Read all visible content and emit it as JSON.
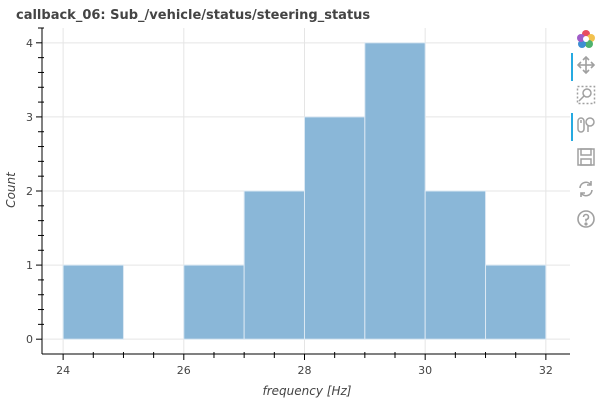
{
  "chart_data": {
    "type": "bar",
    "title": "callback_06: Sub_/vehicle/status/steering_status",
    "xlabel": "frequency [Hz]",
    "ylabel": "Count",
    "bins": [
      {
        "left": 24,
        "right": 25,
        "count": 1
      },
      {
        "left": 25,
        "right": 26,
        "count": 0
      },
      {
        "left": 26,
        "right": 27,
        "count": 1
      },
      {
        "left": 27,
        "right": 28,
        "count": 2
      },
      {
        "left": 28,
        "right": 29,
        "count": 3
      },
      {
        "left": 29,
        "right": 30,
        "count": 4
      },
      {
        "left": 30,
        "right": 31,
        "count": 2
      },
      {
        "left": 31,
        "right": 32,
        "count": 1
      }
    ],
    "xlim": [
      23.65,
      32.4
    ],
    "ylim": [
      -0.2,
      4.2
    ],
    "xticks": [
      24,
      26,
      28,
      30,
      32
    ],
    "yticks": [
      0,
      1,
      2,
      3,
      4
    ],
    "grid": true,
    "bar_color": "#8ab7d8",
    "bar_edge_color": "#dbe8f3"
  },
  "toolbar": {
    "tools": [
      {
        "icon": "bokeh-logo-icon",
        "active": false
      },
      {
        "icon": "pan-icon",
        "active": true
      },
      {
        "icon": "box-zoom-icon",
        "active": false
      },
      {
        "icon": "wheel-zoom-icon",
        "active": true
      },
      {
        "icon": "save-icon",
        "active": false
      },
      {
        "icon": "reset-icon",
        "active": false
      },
      {
        "icon": "help-icon",
        "active": false
      }
    ]
  }
}
